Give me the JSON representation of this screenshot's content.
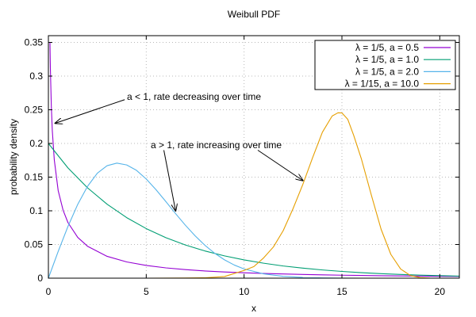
{
  "chart_data": {
    "type": "line",
    "title": "Weibull PDF",
    "xlabel": "x",
    "ylabel": "probability density",
    "xlim": [
      0,
      21
    ],
    "ylim": [
      0,
      0.36
    ],
    "x_ticks": [
      0,
      5,
      10,
      15,
      20
    ],
    "y_ticks": [
      0,
      0.05,
      0.1,
      0.15,
      0.2,
      0.25,
      0.3,
      0.35
    ],
    "x_tick_labels": [
      "0",
      "5",
      "10",
      "15",
      "20"
    ],
    "y_tick_labels": [
      "0",
      "0.05",
      "0.1",
      "0.15",
      "0.2",
      "0.25",
      "0.3",
      "0.35"
    ],
    "grid": true,
    "legend_position": "top-right",
    "series": [
      {
        "name": "λ = 1/5, a = 0.5",
        "color": "#9400d3",
        "points": [
          [
            0.08,
            0.35
          ],
          [
            0.1,
            0.313
          ],
          [
            0.15,
            0.255
          ],
          [
            0.2,
            0.219
          ],
          [
            0.3,
            0.176
          ],
          [
            0.5,
            0.13
          ],
          [
            0.75,
            0.101
          ],
          [
            1,
            0.0825
          ],
          [
            1.5,
            0.0605
          ],
          [
            2,
            0.0474
          ],
          [
            3,
            0.0324
          ],
          [
            4,
            0.0241
          ],
          [
            5,
            0.0189
          ],
          [
            6,
            0.0153
          ],
          [
            7,
            0.0127
          ],
          [
            8,
            0.0107
          ],
          [
            9,
            0.0092
          ],
          [
            10,
            0.008
          ],
          [
            11,
            0.007
          ],
          [
            12,
            0.0062
          ],
          [
            13,
            0.0055
          ],
          [
            14,
            0.0049
          ],
          [
            15,
            0.0044
          ],
          [
            16,
            0.004
          ],
          [
            17,
            0.0036
          ],
          [
            18,
            0.0033
          ],
          [
            19,
            0.003
          ],
          [
            20,
            0.0027
          ],
          [
            21,
            0.0025
          ]
        ]
      },
      {
        "name": "λ = 1/5, a = 1.0",
        "color": "#009e73",
        "points": [
          [
            0,
            0.2
          ],
          [
            1,
            0.1637
          ],
          [
            2,
            0.1341
          ],
          [
            3,
            0.1098
          ],
          [
            4,
            0.0899
          ],
          [
            5,
            0.0736
          ],
          [
            6,
            0.0602
          ],
          [
            7,
            0.0493
          ],
          [
            8,
            0.0404
          ],
          [
            9,
            0.0331
          ],
          [
            10,
            0.0271
          ],
          [
            11,
            0.0222
          ],
          [
            12,
            0.0181
          ],
          [
            13,
            0.0149
          ],
          [
            14,
            0.0122
          ],
          [
            15,
            0.01
          ],
          [
            16,
            0.0082
          ],
          [
            17,
            0.0067
          ],
          [
            18,
            0.0055
          ],
          [
            19,
            0.0045
          ],
          [
            20,
            0.0037
          ],
          [
            21,
            0.003
          ]
        ]
      },
      {
        "name": "λ = 1/5, a = 2.0",
        "color": "#56b4e9",
        "points": [
          [
            0,
            0
          ],
          [
            0.5,
            0.0396
          ],
          [
            1,
            0.0768
          ],
          [
            1.5,
            0.1096
          ],
          [
            2,
            0.1363
          ],
          [
            2.5,
            0.1558
          ],
          [
            3,
            0.167
          ],
          [
            3.5,
            0.1708
          ],
          [
            4,
            0.1681
          ],
          [
            4.5,
            0.1601
          ],
          [
            5,
            0.1472
          ],
          [
            5.5,
            0.1313
          ],
          [
            6,
            0.1138
          ],
          [
            6.5,
            0.0958
          ],
          [
            7,
            0.0786
          ],
          [
            7.5,
            0.0628
          ],
          [
            8,
            0.0488
          ],
          [
            8.5,
            0.0369
          ],
          [
            9,
            0.0272
          ],
          [
            9.5,
            0.0195
          ],
          [
            10,
            0.0137
          ],
          [
            11,
            0.0064
          ],
          [
            12,
            0.0027
          ],
          [
            13,
            0.0011
          ],
          [
            14,
            0.0004
          ],
          [
            15,
            0.0001
          ],
          [
            16,
            0.0
          ],
          [
            21,
            0.0
          ]
        ]
      },
      {
        "name": "λ = 1/15, a = 10.0",
        "color": "#e69f00",
        "points": [
          [
            5,
            0
          ],
          [
            7,
            0.0002
          ],
          [
            8,
            0.0006
          ],
          [
            9,
            0.0024
          ],
          [
            10,
            0.0115
          ],
          [
            10.5,
            0.0172
          ],
          [
            11,
            0.0301
          ],
          [
            11.5,
            0.0464
          ],
          [
            12,
            0.0706
          ],
          [
            12.5,
            0.1031
          ],
          [
            13,
            0.139
          ],
          [
            13.5,
            0.1788
          ],
          [
            14,
            0.2165
          ],
          [
            14.5,
            0.2407
          ],
          [
            14.8,
            0.2455
          ],
          [
            15,
            0.2453
          ],
          [
            15.3,
            0.2357
          ],
          [
            15.6,
            0.2121
          ],
          [
            16,
            0.1765
          ],
          [
            16.5,
            0.1237
          ],
          [
            17,
            0.0728
          ],
          [
            17.5,
            0.0353
          ],
          [
            18,
            0.0136
          ],
          [
            18.5,
            0.0039
          ],
          [
            19,
            0.0008
          ],
          [
            19.5,
            0.0001
          ],
          [
            20,
            0.0
          ],
          [
            21,
            0.0
          ]
        ]
      }
    ],
    "annotations": [
      {
        "text": "a < 1, rate decreasing over time",
        "arrow_from": [
          3.9,
          0.265
        ],
        "arrow_to": [
          0.35,
          0.23
        ]
      },
      {
        "text": "a > 1, rate increasing over time",
        "arrow_from": [
          5.9,
          0.19
        ],
        "arrow_to": [
          6.5,
          0.1
        ]
      },
      {
        "text": "",
        "arrow_from": [
          10.7,
          0.19
        ],
        "arrow_to": [
          13.0,
          0.145
        ]
      }
    ]
  }
}
